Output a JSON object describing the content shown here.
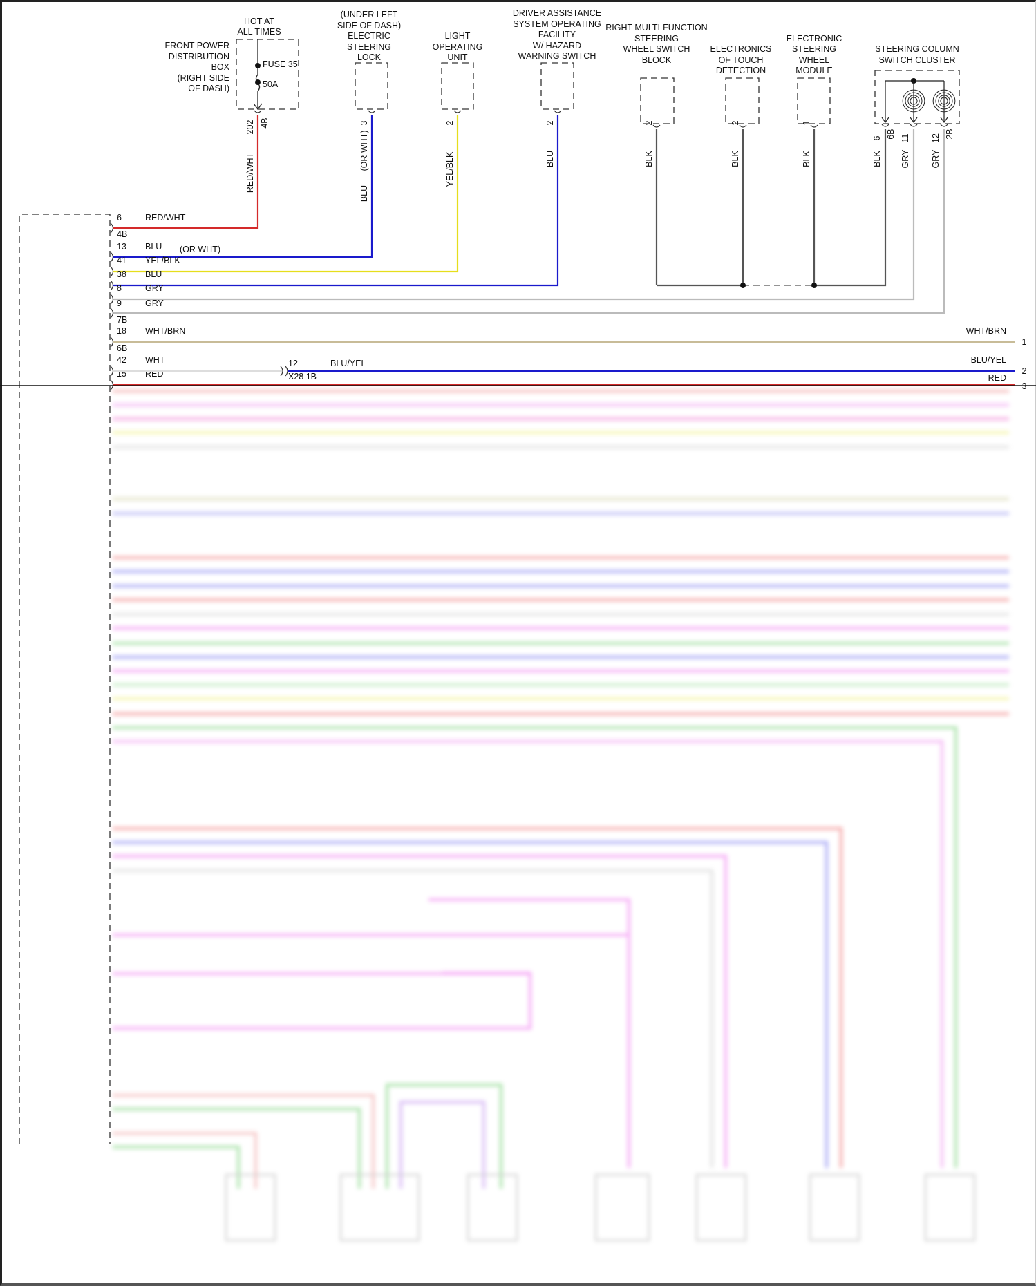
{
  "components": [
    {
      "header": [
        "HOT AT",
        "ALL TIMES"
      ],
      "label_lines": [
        "FRONT POWER",
        "DISTRIBUTION",
        "BOX",
        "(RIGHT SIDE",
        "OF DASH)"
      ],
      "fuse": "FUSE 35",
      "rating": "50A",
      "pins": [
        "202",
        "4B"
      ],
      "wire_labels": [
        "RED/WHT"
      ],
      "wire_color": "#d42a2a"
    },
    {
      "label_lines": [
        "(UNDER LEFT",
        "SIDE OF DASH)",
        "ELECTRIC",
        "STEERING",
        "LOCK"
      ],
      "pins": [
        "3"
      ],
      "wire_labels": [
        "BLU",
        "(OR WHT)"
      ],
      "wire_color": "#1a1acc"
    },
    {
      "label_lines": [
        "LIGHT",
        "OPERATING",
        "UNIT"
      ],
      "pins": [
        "2"
      ],
      "wire_labels": [
        "YEL/BLK"
      ],
      "wire_color": "#e6de1c"
    },
    {
      "label_lines": [
        "DRIVER ASSISTANCE",
        "SYSTEM OPERATING",
        "FACILITY",
        "W/ HAZARD",
        "WARNING SWITCH"
      ],
      "pins": [
        "2"
      ],
      "wire_labels": [
        "BLU"
      ],
      "wire_color": "#1a1acc"
    },
    {
      "label_lines": [
        "RIGHT MULTI-FUNCTION",
        "STEERING",
        "WHEEL SWITCH",
        "BLOCK"
      ],
      "pins": [
        "2"
      ],
      "wire_labels": [
        "BLK"
      ],
      "wire_color": "#555555"
    },
    {
      "label_lines": [
        "ELECTRONICS",
        "OF TOUCH",
        "DETECTION"
      ],
      "pins": [
        "2"
      ],
      "wire_labels": [
        "BLK"
      ],
      "wire_color": "#555555"
    },
    {
      "label_lines": [
        "ELECTRONIC",
        "STEERING",
        "WHEEL",
        "MODULE"
      ],
      "pins": [
        "1"
      ],
      "wire_labels": [
        "BLK"
      ],
      "wire_color": "#555555"
    },
    {
      "label_lines": [
        "STEERING COLUMN",
        "SWITCH CLUSTER"
      ],
      "wires": [
        {
          "pins": [
            "6",
            "6B"
          ],
          "label": "BLK",
          "color": "#555555"
        },
        {
          "pins": [
            "11"
          ],
          "label": "GRY",
          "color": "#bbbbbb"
        },
        {
          "pins": [
            "12",
            "2B"
          ],
          "label": "GRY",
          "color": "#bbbbbb"
        }
      ]
    }
  ],
  "left_connector": {
    "rows": [
      {
        "pin": "6",
        "label": "RED/WHT",
        "color": "#d42a2a"
      },
      {
        "pin": "13",
        "label": "BLU",
        "note": "(OR WHT)",
        "color": "#1a1acc"
      },
      {
        "pin": "41",
        "label": "YEL/BLK",
        "color": "#e6de1c"
      },
      {
        "pin": "38",
        "label": "BLU",
        "color": "#1a1acc"
      },
      {
        "pin": "8",
        "label": "GRY",
        "color": "#bbbbbb"
      },
      {
        "pin": "9",
        "label": "GRY",
        "color": "#bbbbbb"
      },
      {
        "pin": "18",
        "label": "WHT/BRN",
        "color": "#c8bc98"
      },
      {
        "pin": "42",
        "label": "WHT",
        "color": "#dddddd"
      },
      {
        "pin": "15",
        "label": "RED",
        "color": "#d42a2a"
      }
    ],
    "sub_connectors": [
      "4B",
      "7B",
      "6B"
    ]
  },
  "inline_connector": {
    "pin": "12",
    "name": "X28 1B",
    "out_label": "BLU/YEL",
    "out_color": "#1a1acc"
  },
  "right_terminals": [
    {
      "label": "WHT/BRN",
      "pin": "1"
    },
    {
      "label": "BLU/YEL",
      "pin": "2"
    },
    {
      "label": "RED",
      "pin": "3"
    }
  ]
}
